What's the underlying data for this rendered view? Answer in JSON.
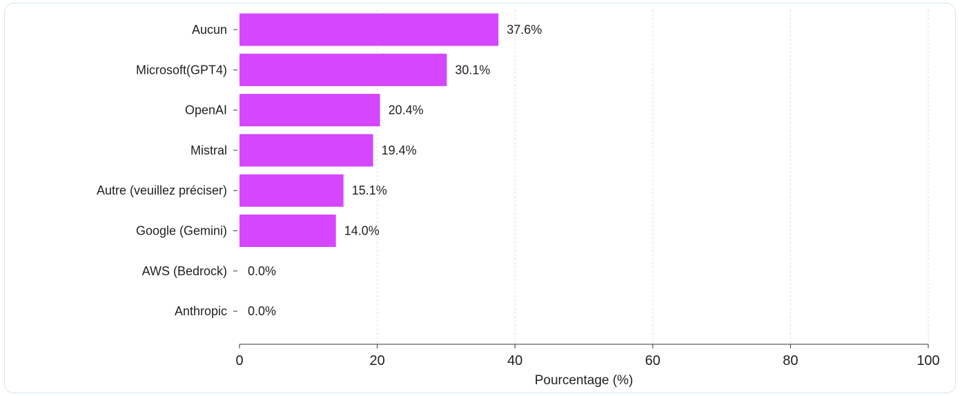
{
  "chart_data": {
    "type": "bar",
    "orientation": "horizontal",
    "categories": [
      "Aucun",
      "Microsoft(GPT4)",
      "OpenAI",
      "Mistral",
      "Autre (veuillez préciser)",
      "Google (Gemini)",
      "AWS (Bedrock)",
      "Anthropic"
    ],
    "values": [
      37.6,
      30.1,
      20.4,
      19.4,
      15.1,
      14.0,
      0.0,
      0.0
    ],
    "value_labels": [
      "37.6%",
      "30.1%",
      "20.4%",
      "19.4%",
      "15.1%",
      "14.0%",
      "0.0%",
      "0.0%"
    ],
    "title": "",
    "xlabel": "Pourcentage (%)",
    "ylabel": "",
    "xlim": [
      0,
      100
    ],
    "x_ticks": [
      0,
      20,
      40,
      60,
      80,
      100
    ],
    "grid": "vertical dashed",
    "bar_color": "#d646ff"
  }
}
